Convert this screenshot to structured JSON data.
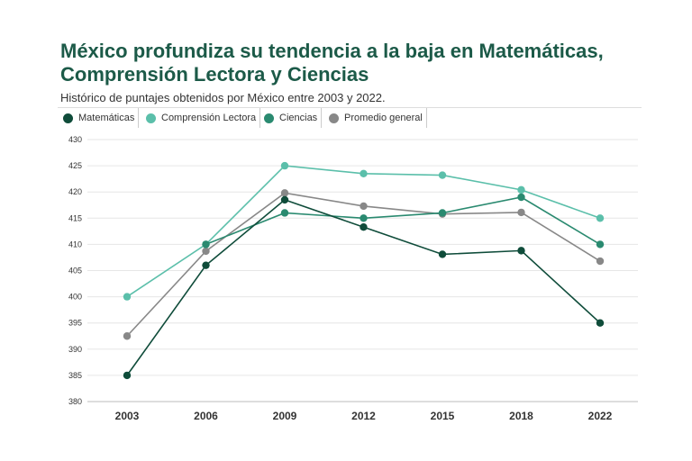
{
  "chart_data": {
    "type": "line",
    "title": "México profundiza su tendencia a la baja en Matemáticas, Comprensión Lectora y Ciencias",
    "subtitle": "Histórico de puntajes obtenidos por México entre 2003 y 2022.",
    "categories": [
      "2003",
      "2006",
      "2009",
      "2012",
      "2015",
      "2018",
      "2022"
    ],
    "ylim": [
      380,
      430
    ],
    "yticks": [
      380,
      385,
      390,
      395,
      400,
      405,
      410,
      415,
      420,
      425,
      430
    ],
    "grid": true,
    "legend_position": "top-left",
    "series": [
      {
        "name": "Matemáticas",
        "color": "#0f4c3a",
        "values": [
          385,
          406,
          418.5,
          413.3,
          408.1,
          408.8,
          395
        ]
      },
      {
        "name": "Comprensión Lectora",
        "color": "#5bbfaa",
        "values": [
          400,
          410,
          425,
          423.5,
          423.2,
          420.4,
          415
        ]
      },
      {
        "name": "Ciencias",
        "color": "#2a8a70",
        "values": [
          null,
          410,
          416,
          415,
          416,
          419,
          410
        ]
      },
      {
        "name": "Promedio general",
        "color": "#888888",
        "values": [
          392.5,
          408.7,
          419.8,
          417.3,
          415.8,
          416.1,
          406.8
        ]
      }
    ]
  }
}
